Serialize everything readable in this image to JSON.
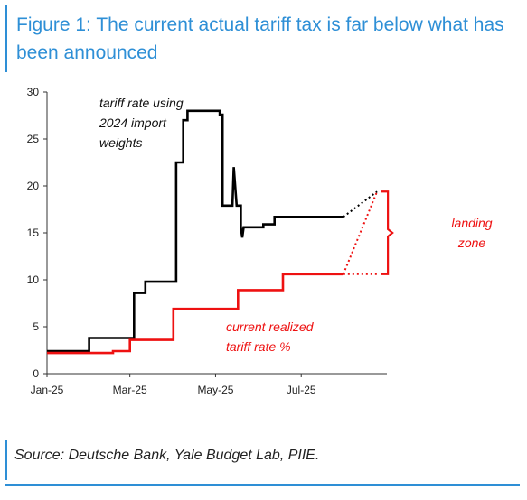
{
  "title": "Figure 1: The current actual tariff tax is far below what has been announced",
  "source": "Source: Deutsche Bank, Yale Budget Lab, PIIE.",
  "colors": {
    "accent": "#2e8fd6",
    "series_tariff_weights": "#000000",
    "series_realized": "#ee1111"
  },
  "chart_data": {
    "type": "line",
    "title": "Figure 1: The current actual tariff tax is far below what has been announced",
    "xlabel": "",
    "ylabel": "",
    "x_tick_labels": [
      "Jan-25",
      "Mar-25",
      "May-25",
      "Jul-25"
    ],
    "x_tick_dates": [
      "2025-01-01",
      "2025-03-01",
      "2025-05-01",
      "2025-07-01"
    ],
    "xlim": [
      "2025-01-01",
      "2025-08-31"
    ],
    "ylim": [
      0,
      30
    ],
    "y_ticks": [
      0,
      5,
      10,
      15,
      20,
      25,
      30
    ],
    "grid": false,
    "series": [
      {
        "name": "tariff rate using 2024 import weights",
        "color": "#000000",
        "step": true,
        "points": [
          [
            "2025-01-01",
            2.4
          ],
          [
            "2025-01-31",
            2.4
          ],
          [
            "2025-01-31",
            3.8
          ],
          [
            "2025-03-04",
            3.8
          ],
          [
            "2025-03-04",
            8.6
          ],
          [
            "2025-03-12",
            8.6
          ],
          [
            "2025-03-12",
            9.8
          ],
          [
            "2025-04-03",
            9.8
          ],
          [
            "2025-04-03",
            22.5
          ],
          [
            "2025-04-08",
            22.5
          ],
          [
            "2025-04-08",
            27.0
          ],
          [
            "2025-04-11",
            27.0
          ],
          [
            "2025-04-11",
            28.0
          ],
          [
            "2025-05-04",
            28.0
          ],
          [
            "2025-05-04",
            27.6
          ],
          [
            "2025-05-06",
            27.6
          ],
          [
            "2025-05-06",
            17.9
          ],
          [
            "2025-05-13",
            17.9
          ],
          [
            "2025-05-14",
            22.0
          ],
          [
            "2025-05-16",
            17.9
          ],
          [
            "2025-05-19",
            17.9
          ],
          [
            "2025-05-19",
            15.6
          ],
          [
            "2025-05-20",
            14.5
          ],
          [
            "2025-05-21",
            15.6
          ],
          [
            "2025-06-04",
            15.6
          ],
          [
            "2025-06-04",
            15.9
          ],
          [
            "2025-06-12",
            15.9
          ],
          [
            "2025-06-12",
            16.7
          ],
          [
            "2025-07-31",
            16.7
          ]
        ]
      },
      {
        "name": "current realized tariff rate %",
        "color": "#ee1111",
        "step": true,
        "points": [
          [
            "2025-01-01",
            2.2
          ],
          [
            "2025-02-17",
            2.2
          ],
          [
            "2025-02-17",
            2.4
          ],
          [
            "2025-03-01",
            2.4
          ],
          [
            "2025-03-01",
            3.6
          ],
          [
            "2025-04-01",
            3.6
          ],
          [
            "2025-04-01",
            6.9
          ],
          [
            "2025-05-17",
            6.9
          ],
          [
            "2025-05-17",
            8.9
          ],
          [
            "2025-06-18",
            8.9
          ],
          [
            "2025-06-18",
            10.6
          ],
          [
            "2025-07-31",
            10.6
          ]
        ]
      }
    ],
    "projections": [
      {
        "color": "#000000",
        "from": [
          "2025-07-31",
          16.7
        ],
        "to": [
          "2025-08-24",
          19.4
        ]
      },
      {
        "color": "#ee1111",
        "from": [
          "2025-07-31",
          10.6
        ],
        "to": [
          "2025-08-24",
          19.4
        ]
      },
      {
        "color": "#ee1111",
        "from": [
          "2025-07-31",
          10.6
        ],
        "to": [
          "2025-08-24",
          10.6
        ]
      }
    ],
    "landing_zone": {
      "label": "landing zone",
      "lines": [
        "landing",
        "zone"
      ],
      "y_low": 10.6,
      "y_high": 19.4
    },
    "annotations": [
      {
        "id": "tariff",
        "color": "#111111",
        "lines": [
          "tariff rate using",
          "2024 import",
          "weights"
        ]
      },
      {
        "id": "realized",
        "color": "#ee1111",
        "lines": [
          "current realized",
          "tariff rate %"
        ]
      }
    ]
  }
}
